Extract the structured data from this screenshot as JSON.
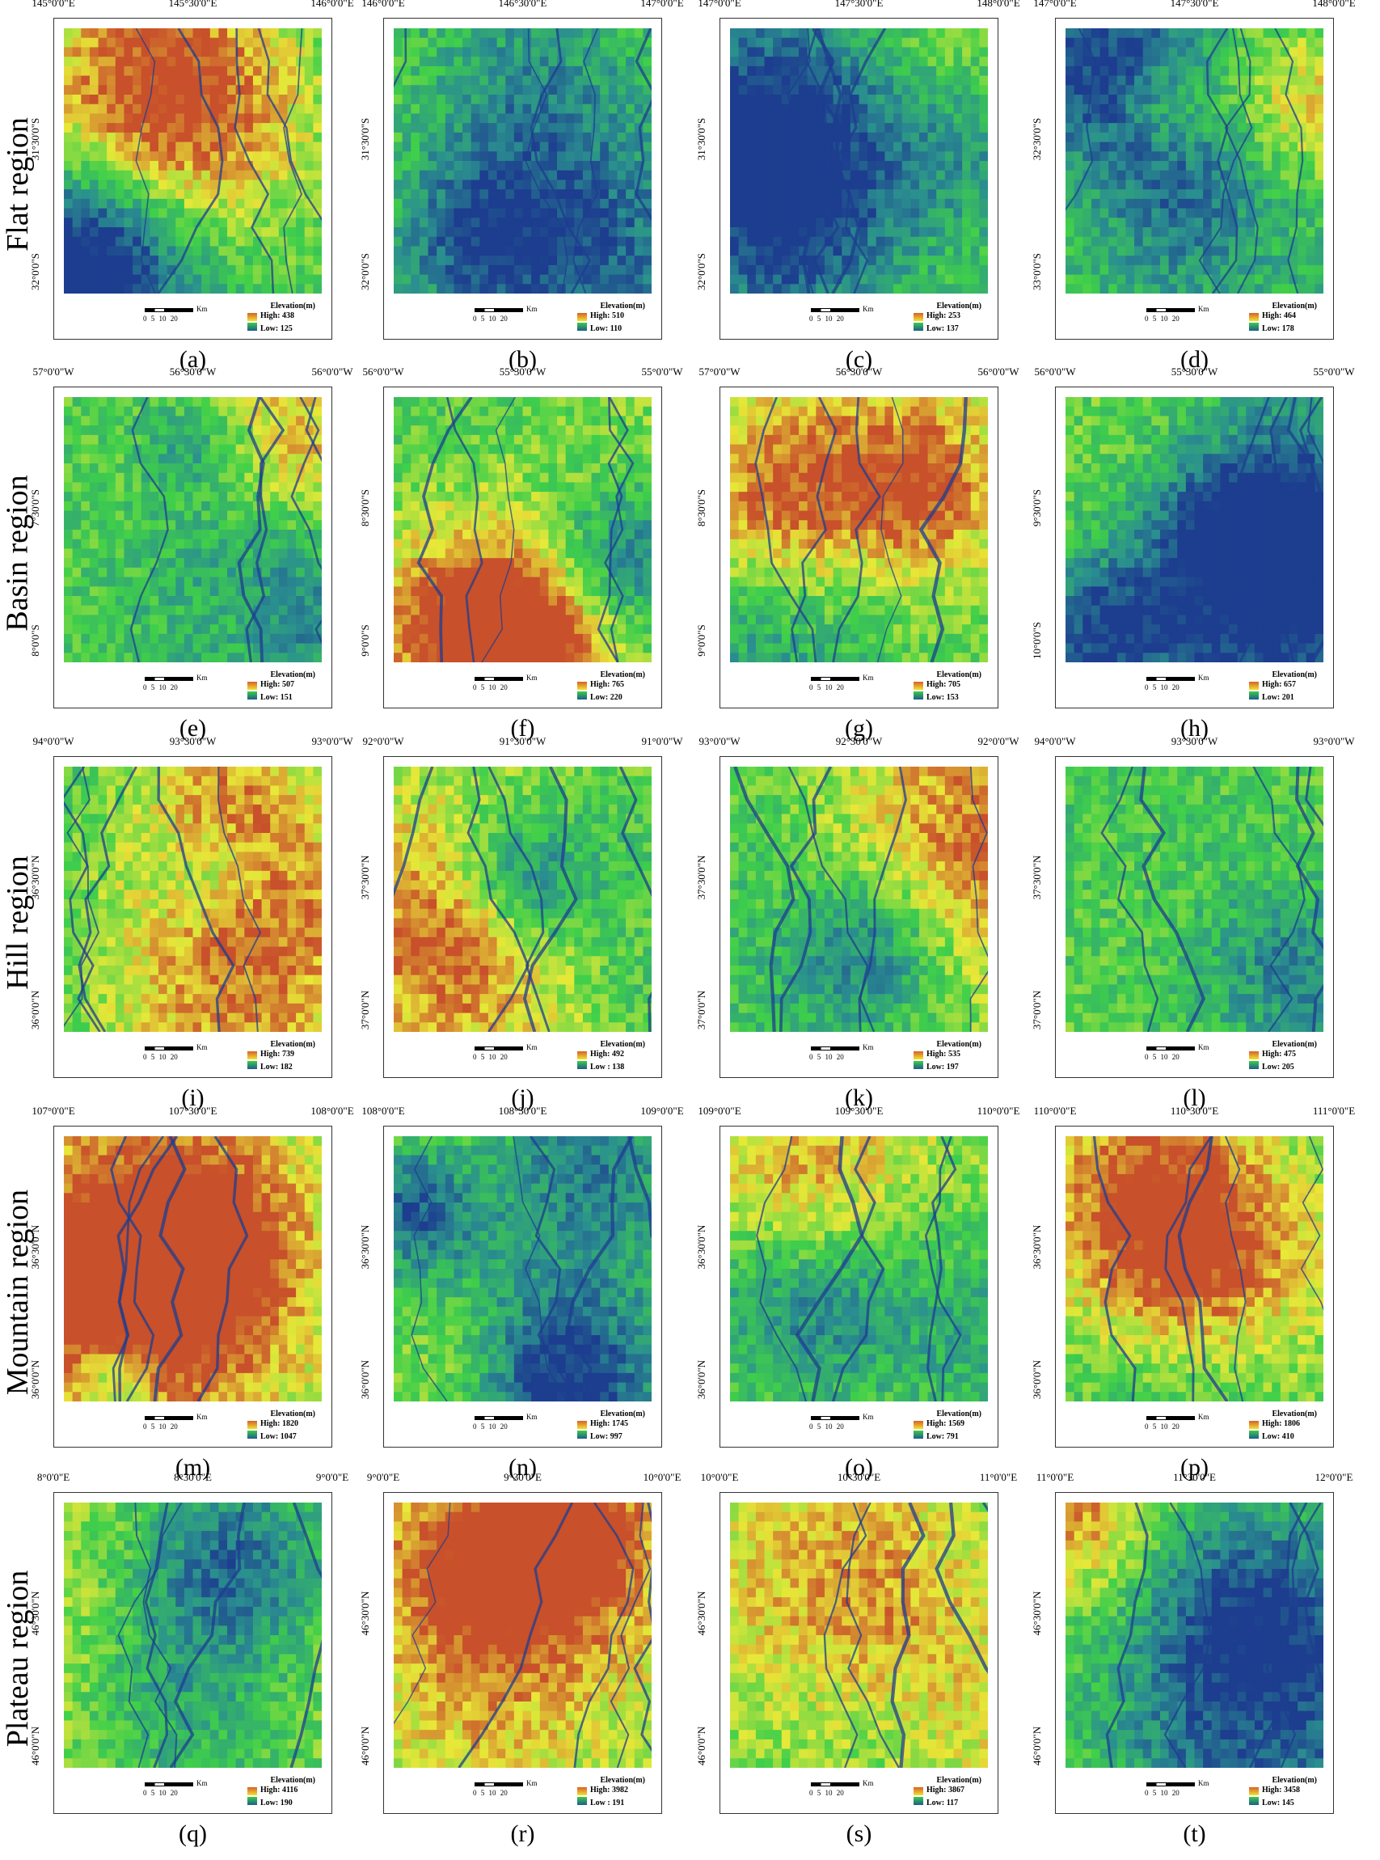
{
  "rows": [
    {
      "label": "Flat region",
      "lat_hemisphere": "S"
    },
    {
      "label": "Basin region"
    },
    {
      "label": "Hill region"
    },
    {
      "label": "Mountain region"
    },
    {
      "label": "Plateau region"
    }
  ],
  "legend_title": "Elevation(m)",
  "scale": {
    "unit": "Km",
    "ticks": "0 5 10 20"
  },
  "palette": {
    "low": "#1d3d8f",
    "mid_low": "#2a8f8f",
    "mid": "#3fcf4a",
    "mid_high": "#e8e838",
    "high": "#c8502a"
  },
  "panels": [
    {
      "caption": "(a)",
      "lon": [
        "145°0'0\"E",
        "145°30'0\"E",
        "146°0'0\"E"
      ],
      "lat": [
        "31°30'0\"S",
        "32°0'0\"S"
      ],
      "high": "High: 438",
      "low": "Low: 125",
      "tone": 0.45
    },
    {
      "caption": "(b)",
      "lon": [
        "146°0'0\"E",
        "146°30'0\"E",
        "147°0'0\"E"
      ],
      "lat": [
        "31°30'0\"S",
        "32°0'0\"S"
      ],
      "high": "High: 510",
      "low": "Low: 110",
      "tone": 0.5
    },
    {
      "caption": "(c)",
      "lon": [
        "147°0'0\"E",
        "147°30'0\"E",
        "148°0'0\"E"
      ],
      "lat": [
        "31°30'0\"S",
        "32°0'0\"S"
      ],
      "high": "High: 253",
      "low": "Low: 137",
      "tone": 0.55
    },
    {
      "caption": "(d)",
      "lon": [
        "147°0'0\"E",
        "147°30'0\"E",
        "148°0'0\"E"
      ],
      "lat": [
        "32°30'0\"S",
        "33°0'0\"S"
      ],
      "high": "High: 464",
      "low": "Low: 178",
      "tone": 0.45
    },
    {
      "caption": "(e)",
      "lon": [
        "57°0'0\"W",
        "56°30'0\"W",
        "56°0'0\"W"
      ],
      "lat": [
        "7°30'0\"S",
        "8°0'0\"S"
      ],
      "high": "High: 507",
      "low": "Low: 151",
      "tone": 0.5
    },
    {
      "caption": "(f)",
      "lon": [
        "56°0'0\"W",
        "55°30'0\"W",
        "55°0'0\"W"
      ],
      "lat": [
        "8°30'0\"S",
        "9°0'0\"S"
      ],
      "high": "High: 765",
      "low": "Low: 220",
      "tone": 0.5
    },
    {
      "caption": "(g)",
      "lon": [
        "57°0'0\"W",
        "56°30'0\"W",
        "56°0'0\"W"
      ],
      "lat": [
        "8°30'0\"S",
        "9°0'0\"S"
      ],
      "high": "High: 705",
      "low": "Low: 153",
      "tone": 0.55
    },
    {
      "caption": "(h)",
      "lon": [
        "56°0'0\"W",
        "55°30'0\"W",
        "55°0'0\"W"
      ],
      "lat": [
        "9°30'0\"S",
        "10°0'0\"S"
      ],
      "high": "High: 657",
      "low": "Low: 201",
      "tone": 0.35
    },
    {
      "caption": "(i)",
      "lon": [
        "94°0'0\"W",
        "93°30'0\"W",
        "93°0'0\"W"
      ],
      "lat": [
        "36°30'0\"N",
        "36°0'0\"N"
      ],
      "high": "High: 739",
      "low": "Low: 182",
      "tone": 0.45
    },
    {
      "caption": "(j)",
      "lon": [
        "92°0'0\"W",
        "91°30'0\"W",
        "91°0'0\"W"
      ],
      "lat": [
        "37°30'0\"N",
        "37°0'0\"N"
      ],
      "high": "High: 492",
      "low": "Low : 138",
      "tone": 0.65
    },
    {
      "caption": "(k)",
      "lon": [
        "93°0'0\"W",
        "92°30'0\"W",
        "92°0'0\"W"
      ],
      "lat": [
        "37°30'0\"N",
        "37°0'0\"N"
      ],
      "high": "High: 535",
      "low": "Low: 197",
      "tone": 0.6
    },
    {
      "caption": "(l)",
      "lon": [
        "94°0'0\"W",
        "93°30'0\"W",
        "93°0'0\"W"
      ],
      "lat": [
        "37°30'0\"N",
        "37°0'0\"N"
      ],
      "high": "High: 475",
      "low": "Low: 205",
      "tone": 0.5
    },
    {
      "caption": "(m)",
      "lon": [
        "107°0'0\"E",
        "107°30'0\"E",
        "108°0'0\"E"
      ],
      "lat": [
        "36°30'0\"N",
        "36°0'0\"N"
      ],
      "high": "High: 1820",
      "low": "Low: 1047",
      "tone": 0.6
    },
    {
      "caption": "(n)",
      "lon": [
        "108°0'0\"E",
        "108°30'0\"E",
        "109°0'0\"E"
      ],
      "lat": [
        "36°30'0\"N",
        "36°0'0\"N"
      ],
      "high": "High: 1745",
      "low": "Low: 997",
      "tone": 0.6
    },
    {
      "caption": "(o)",
      "lon": [
        "109°0'0\"E",
        "109°30'0\"E",
        "110°0'0\"E"
      ],
      "lat": [
        "36°30'0\"N",
        "36°0'0\"N"
      ],
      "high": "High: 1569",
      "low": "Low: 791",
      "tone": 0.6
    },
    {
      "caption": "(p)",
      "lon": [
        "110°0'0\"E",
        "110°30'0\"E",
        "111°0'0\"E"
      ],
      "lat": [
        "36°30'0\"N",
        "36°0'0\"N"
      ],
      "high": "High: 1806",
      "low": "Low: 410",
      "tone": 0.6
    },
    {
      "caption": "(q)",
      "lon": [
        "8°0'0\"E",
        "8°30'0\"E",
        "9°0'0\"E"
      ],
      "lat": [
        "46°30'0\"N",
        "46°0'0\"N"
      ],
      "high": "High: 4116",
      "low": "Low: 190",
      "tone": 0.55
    },
    {
      "caption": "(r)",
      "lon": [
        "9°0'0\"E",
        "9°30'0\"E",
        "10°0'0\"E"
      ],
      "lat": [
        "46°30'0\"N",
        "46°0'0\"N"
      ],
      "high": "High: 3982",
      "low": "Low : 191",
      "tone": 0.55
    },
    {
      "caption": "(s)",
      "lon": [
        "10°0'0\"E",
        "10°30'0\"E",
        "11°0'0\"E"
      ],
      "lat": [
        "46°30'0\"N",
        "46°0'0\"N"
      ],
      "high": "High: 3867",
      "low": "Low: 117",
      "tone": 0.6
    },
    {
      "caption": "(t)",
      "lon": [
        "11°0'0\"E",
        "11°30'0\"E",
        "12°0'0\"E"
      ],
      "lat": [
        "46°30'0\"N",
        "46°0'0\"N"
      ],
      "high": "High: 3458",
      "low": "Low: 145",
      "tone": 0.55
    }
  ]
}
